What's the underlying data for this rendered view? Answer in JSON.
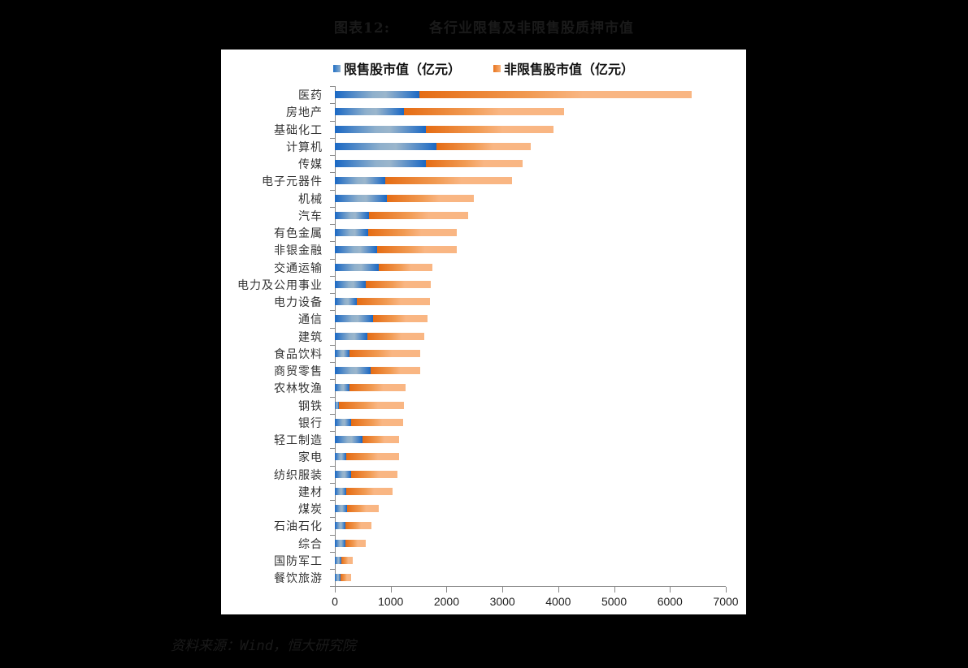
{
  "figure": {
    "number_label": "图表12:",
    "title": "各行业限售及非限售股质押市值",
    "source": "资料来源：Wind，恒大研究院"
  },
  "legend": {
    "restricted": "限售股市值（亿元）",
    "unrestricted": "非限售股市值（亿元）"
  },
  "colors": {
    "restricted": "#1f6fc5",
    "unrestricted": "#e8731c",
    "unrestricted_light": "#f8b27a"
  },
  "chart_data": {
    "type": "bar",
    "orientation": "horizontal",
    "stacked": true,
    "title": "各行业限售及非限售股质押市值",
    "xlabel": "",
    "ylabel": "",
    "xlim": [
      0,
      7000
    ],
    "xticks": [
      0,
      1000,
      2000,
      3000,
      4000,
      5000,
      6000,
      7000
    ],
    "grid": false,
    "legend_position": "top",
    "categories": [
      "医药",
      "房地产",
      "基础化工",
      "计算机",
      "传媒",
      "电子元器件",
      "机械",
      "汽车",
      "有色金属",
      "非银金融",
      "交通运输",
      "电力及公用事业",
      "电力设备",
      "通信",
      "建筑",
      "食品饮料",
      "商贸零售",
      "农林牧渔",
      "钢铁",
      "银行",
      "轻工制造",
      "家电",
      "纺织服装",
      "建材",
      "煤炭",
      "石油石化",
      "综合",
      "国防军工",
      "餐饮旅游"
    ],
    "series": [
      {
        "name": "限售股市值（亿元）",
        "values": [
          1514,
          1242,
          1635,
          1820,
          1635,
          907,
          932,
          616,
          597,
          762,
          781,
          553,
          393,
          684,
          582,
          267,
          640,
          267,
          78,
          286,
          495,
          204,
          286,
          204,
          223,
          184,
          184,
          121,
          97
        ]
      },
      {
        "name": "非限售股市值（亿元）",
        "values": [
          4872,
          2863,
          2285,
          1684,
          1723,
          2266,
          1552,
          1766,
          1581,
          1416,
          961,
          1165,
          1305,
          971,
          1015,
          1266,
          893,
          995,
          1159,
          932,
          660,
          951,
          830,
          825,
          563,
          476,
          369,
          204,
          189
        ]
      }
    ],
    "totals": [
      6386,
      4105,
      3920,
      3504,
      3358,
      3173,
      2484,
      2382,
      2178,
      2178,
      1742,
      1718,
      1698,
      1655,
      1597,
      1533,
      1533,
      1262,
      1237,
      1218,
      1155,
      1155,
      1116,
      1029,
      786,
      660,
      553,
      325,
      286
    ]
  }
}
